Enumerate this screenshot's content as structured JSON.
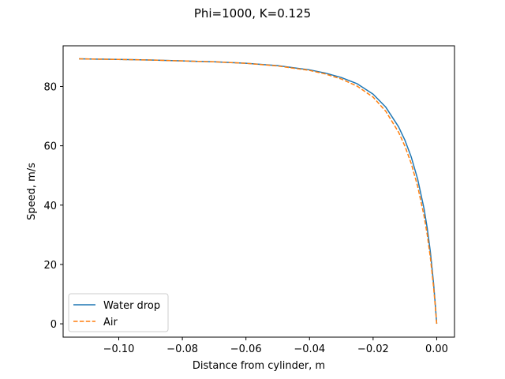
{
  "chart_data": {
    "type": "line",
    "title": "Phi=1000, K=0.125",
    "xlabel": "Distance from cylinder, m",
    "ylabel": "Speed, m/s",
    "xlim": [
      -0.1175,
      0.0056
    ],
    "ylim": [
      -4.5,
      93.7
    ],
    "xticks": [
      -0.1,
      -0.08,
      -0.06,
      -0.04,
      -0.02,
      0.0
    ],
    "xtick_labels": [
      "−0.10",
      "−0.08",
      "−0.06",
      "−0.04",
      "−0.02",
      "0.00"
    ],
    "yticks": [
      0,
      20,
      40,
      60,
      80
    ],
    "ytick_labels": [
      "0",
      "20",
      "40",
      "60",
      "80"
    ],
    "grid": false,
    "legend_position": "lower-left",
    "series": [
      {
        "name": "Water drop",
        "color": "#1f77b4",
        "style": "solid",
        "x": [
          -0.1125,
          -0.1,
          -0.09,
          -0.08,
          -0.07,
          -0.06,
          -0.05,
          -0.04,
          -0.035,
          -0.03,
          -0.025,
          -0.02,
          -0.016,
          -0.012,
          -0.01,
          -0.008,
          -0.006,
          -0.004,
          -0.003,
          -0.002,
          -0.001,
          -0.0005,
          0.0
        ],
        "y": [
          89.3,
          89.1,
          88.9,
          88.6,
          88.3,
          87.8,
          87.0,
          85.6,
          84.5,
          83.0,
          80.9,
          77.4,
          73.0,
          66.4,
          61.9,
          56.2,
          48.8,
          38.9,
          32.4,
          24.3,
          13.8,
          7.3,
          0.0
        ]
      },
      {
        "name": "Air",
        "color": "#ff7f0e",
        "style": "dashed",
        "x": [
          -0.1125,
          -0.1,
          -0.09,
          -0.08,
          -0.07,
          -0.06,
          -0.05,
          -0.04,
          -0.035,
          -0.03,
          -0.025,
          -0.02,
          -0.016,
          -0.012,
          -0.01,
          -0.008,
          -0.006,
          -0.004,
          -0.003,
          -0.002,
          -0.001,
          -0.0005,
          0.0
        ],
        "y": [
          89.3,
          89.1,
          88.9,
          88.6,
          88.3,
          87.8,
          86.9,
          85.4,
          84.2,
          82.5,
          80.1,
          76.4,
          71.6,
          64.6,
          59.9,
          54.0,
          46.4,
          36.5,
          30.2,
          22.4,
          12.6,
          6.6,
          0.0
        ]
      }
    ]
  }
}
